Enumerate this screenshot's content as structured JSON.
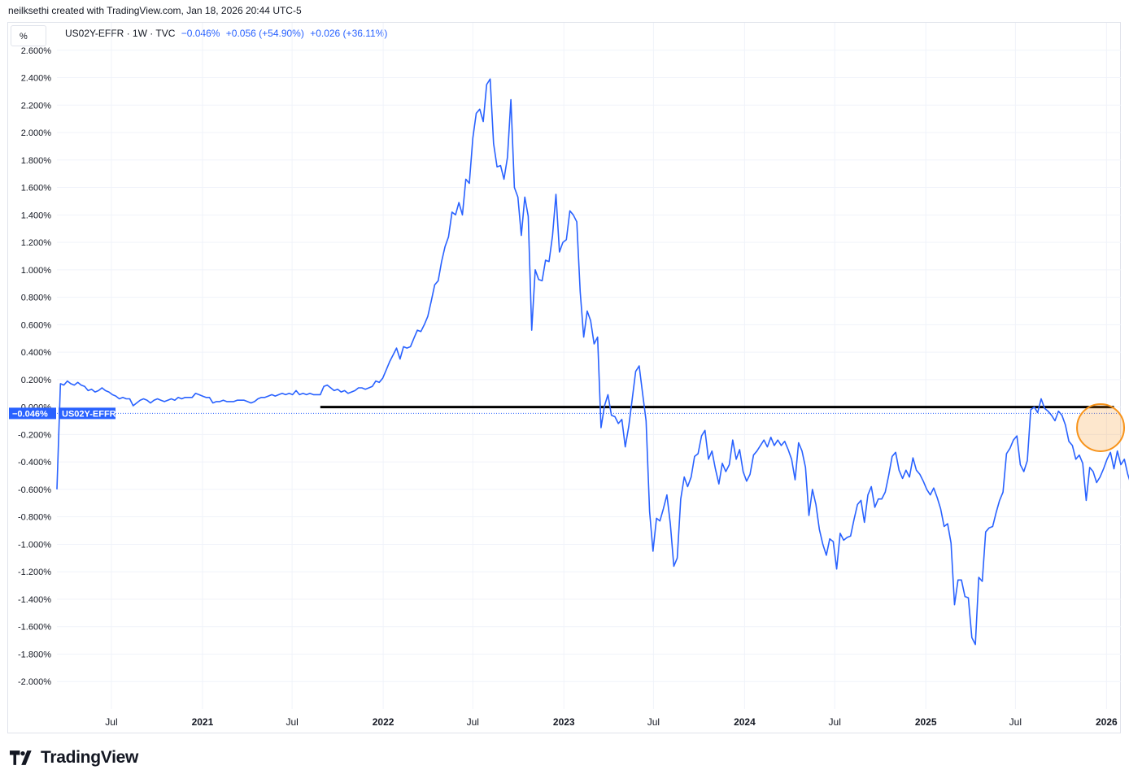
{
  "header": {
    "credit": "neilksethi created with TradingView.com, Jan 18, 2026 20:44 UTC-5"
  },
  "unit_label": "%",
  "legend": {
    "symbol": "US02Y-EFFR · 1W · TVC",
    "last": "−0.046%",
    "change1": "+0.056 (+54.90%)",
    "change2": "+0.026 (+36.11%)"
  },
  "price_tag": {
    "value": "−0.046%",
    "name": "US02Y-EFFR"
  },
  "brand": "TradingView",
  "colors": {
    "series": "#2962ff",
    "reference_line": "#000000",
    "highlight": "#f7931a",
    "grid": "#f0f3fa"
  },
  "chart_data": {
    "type": "line",
    "series": [
      {
        "name": "US02Y-EFFR",
        "x_start": "2020-03-13",
        "interval": "1W",
        "values": [
          -0.6,
          0.17,
          0.16,
          0.19,
          0.17,
          0.16,
          0.18,
          0.16,
          0.15,
          0.12,
          0.13,
          0.11,
          0.12,
          0.14,
          0.12,
          0.11,
          0.09,
          0.08,
          0.06,
          0.07,
          0.06,
          0.06,
          0.01,
          0.03,
          0.05,
          0.06,
          0.05,
          0.03,
          0.05,
          0.06,
          0.05,
          0.04,
          0.05,
          0.06,
          0.05,
          0.07,
          0.06,
          0.07,
          0.07,
          0.07,
          0.1,
          0.09,
          0.08,
          0.07,
          0.07,
          0.03,
          0.04,
          0.04,
          0.05,
          0.04,
          0.04,
          0.04,
          0.05,
          0.05,
          0.05,
          0.04,
          0.03,
          0.04,
          0.06,
          0.07,
          0.07,
          0.08,
          0.09,
          0.08,
          0.09,
          0.1,
          0.09,
          0.1,
          0.09,
          0.12,
          0.09,
          0.1,
          0.09,
          0.1,
          0.09,
          0.09,
          0.09,
          0.15,
          0.16,
          0.14,
          0.12,
          0.13,
          0.11,
          0.12,
          0.1,
          0.11,
          0.12,
          0.14,
          0.14,
          0.13,
          0.14,
          0.15,
          0.19,
          0.18,
          0.21,
          0.27,
          0.33,
          0.38,
          0.43,
          0.35,
          0.44,
          0.43,
          0.44,
          0.5,
          0.56,
          0.55,
          0.6,
          0.66,
          0.77,
          0.89,
          0.92,
          1.06,
          1.17,
          1.24,
          1.42,
          1.4,
          1.49,
          1.4,
          1.66,
          1.63,
          1.96,
          2.14,
          2.17,
          2.08,
          2.35,
          2.39,
          1.92,
          1.75,
          1.76,
          1.66,
          1.82,
          2.24,
          1.6,
          1.53,
          1.25,
          1.53,
          1.39,
          0.56,
          1.0,
          0.93,
          0.92,
          1.07,
          1.06,
          1.25,
          1.55,
          1.13,
          1.2,
          1.22,
          1.43,
          1.4,
          1.35,
          0.84,
          0.51,
          0.7,
          0.63,
          0.46,
          0.51,
          -0.15,
          0.01,
          0.09,
          -0.06,
          -0.07,
          -0.12,
          -0.09,
          -0.29,
          -0.14,
          0.06,
          0.26,
          0.3,
          0.1,
          -0.1,
          -0.76,
          -1.05,
          -0.81,
          -0.83,
          -0.74,
          -0.64,
          -0.85,
          -1.16,
          -1.1,
          -0.67,
          -0.51,
          -0.58,
          -0.51,
          -0.36,
          -0.34,
          -0.21,
          -0.17,
          -0.38,
          -0.32,
          -0.45,
          -0.56,
          -0.41,
          -0.47,
          -0.42,
          -0.24,
          -0.38,
          -0.31,
          -0.47,
          -0.54,
          -0.49,
          -0.35,
          -0.32,
          -0.28,
          -0.24,
          -0.29,
          -0.22,
          -0.28,
          -0.24,
          -0.28,
          -0.25,
          -0.31,
          -0.38,
          -0.53,
          -0.26,
          -0.32,
          -0.44,
          -0.79,
          -0.6,
          -0.71,
          -0.89,
          -1.0,
          -1.08,
          -0.96,
          -0.98,
          -1.18,
          -0.92,
          -0.97,
          -0.95,
          -0.94,
          -0.82,
          -0.71,
          -0.68,
          -0.84,
          -0.64,
          -0.58,
          -0.73,
          -0.67,
          -0.67,
          -0.62,
          -0.5,
          -0.36,
          -0.33,
          -0.46,
          -0.52,
          -0.46,
          -0.51,
          -0.37,
          -0.46,
          -0.49,
          -0.54,
          -0.6,
          -0.64,
          -0.59,
          -0.66,
          -0.74,
          -0.87,
          -0.85,
          -0.99,
          -1.44,
          -1.26,
          -1.26,
          -1.38,
          -1.39,
          -1.68,
          -1.73,
          -1.24,
          -1.27,
          -0.91,
          -0.88,
          -0.87,
          -0.77,
          -0.68,
          -0.62,
          -0.34,
          -0.3,
          -0.24,
          -0.21,
          -0.42,
          -0.47,
          -0.39,
          -0.02,
          0.0,
          -0.04,
          0.06,
          -0.01,
          -0.03,
          -0.06,
          -0.1,
          -0.03,
          -0.06,
          -0.13,
          -0.25,
          -0.28,
          -0.38,
          -0.35,
          -0.41,
          -0.68,
          -0.44,
          -0.47,
          -0.55,
          -0.51,
          -0.45,
          -0.38,
          -0.33,
          -0.45,
          -0.32,
          -0.42,
          -0.38,
          -0.49,
          -0.57,
          -0.44,
          -0.43,
          -0.44,
          -0.39,
          -0.58,
          -0.57,
          -0.64,
          -0.72,
          -0.8,
          -0.77,
          -0.62,
          -0.52,
          -0.57,
          -0.64,
          -0.62,
          -0.3,
          -0.32,
          -0.28,
          -0.36,
          -0.38,
          -0.29,
          -0.14,
          -0.16,
          -0.16,
          -0.17,
          -0.12,
          -0.05
        ]
      }
    ],
    "x_tick_labels": [
      "Jul",
      "2021",
      "Jul",
      "2022",
      "Jul",
      "2023",
      "Jul",
      "2024",
      "Jul",
      "2025",
      "Jul",
      "2026"
    ],
    "x_tick_dates": [
      "2020-07-01",
      "2021-01-01",
      "2021-07-01",
      "2022-01-01",
      "2022-07-01",
      "2023-01-01",
      "2023-07-01",
      "2024-01-01",
      "2024-07-01",
      "2025-01-01",
      "2025-07-01",
      "2026-01-01"
    ],
    "y_tick_labels": [
      "2.600%",
      "2.400%",
      "2.200%",
      "2.000%",
      "1.800%",
      "1.600%",
      "1.400%",
      "1.200%",
      "1.000%",
      "0.800%",
      "0.600%",
      "0.400%",
      "0.200%",
      "0.000%",
      "-0.200%",
      "-0.400%",
      "-0.600%",
      "-0.800%",
      "-1.000%",
      "-1.200%",
      "-1.400%",
      "-1.600%",
      "-1.800%",
      "-2.000%"
    ],
    "ylim": [
      -2.2,
      2.8
    ],
    "reference_line": {
      "value": 0.0,
      "from": "2021-08-27",
      "to": "2026-01-16"
    },
    "last_value": -0.046,
    "highlight": {
      "date": "2025-12-20",
      "value": -0.15
    },
    "grid": true
  }
}
